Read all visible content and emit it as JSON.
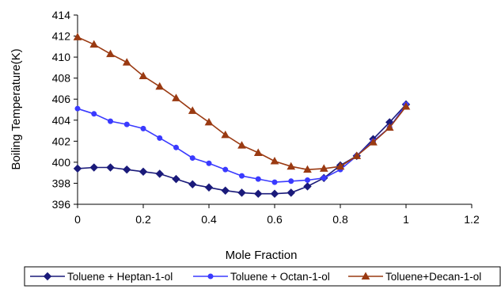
{
  "chart_data": {
    "type": "line",
    "title": "",
    "xlabel": "Mole Fraction",
    "ylabel": "Boiling Temperature(K)",
    "xlim": [
      0,
      1.2
    ],
    "ylim": [
      396,
      414
    ],
    "x_ticks": [
      "0",
      "0.2",
      "0.4",
      "0.6",
      "0.8",
      "1",
      "1.2"
    ],
    "y_ticks": [
      "396",
      "398",
      "400",
      "402",
      "404",
      "406",
      "408",
      "410",
      "412",
      "414"
    ],
    "grid": false,
    "legend_position": "bottom",
    "series": [
      {
        "name": "Toluene + Heptan-1-ol",
        "color": "#1a1a7a",
        "marker": "diamond",
        "x": [
          0,
          0.05,
          0.1,
          0.15,
          0.2,
          0.25,
          0.3,
          0.35,
          0.4,
          0.45,
          0.5,
          0.55,
          0.6,
          0.65,
          0.7,
          0.75,
          0.8,
          0.85,
          0.9,
          0.95,
          1.0
        ],
        "y": [
          399.4,
          399.5,
          399.5,
          399.3,
          399.1,
          398.9,
          398.4,
          397.9,
          397.6,
          397.3,
          397.1,
          397.0,
          397.0,
          397.1,
          397.7,
          398.5,
          399.7,
          400.6,
          402.2,
          403.8,
          405.5
        ]
      },
      {
        "name": "Toluene + Octan-1-ol",
        "color": "#3a3aff",
        "marker": "circle",
        "x": [
          0,
          0.05,
          0.1,
          0.15,
          0.2,
          0.25,
          0.3,
          0.35,
          0.4,
          0.45,
          0.5,
          0.55,
          0.6,
          0.65,
          0.7,
          0.75,
          0.8,
          0.85,
          0.9,
          0.95,
          1.0
        ],
        "y": [
          405.1,
          404.6,
          403.9,
          403.6,
          403.2,
          402.3,
          401.4,
          400.4,
          399.9,
          399.3,
          398.7,
          398.4,
          398.1,
          398.2,
          398.3,
          398.5,
          399.3,
          400.6,
          402.0,
          403.3,
          405.5
        ]
      },
      {
        "name": "Toluene+Decan-1-ol",
        "color": "#9a3a12",
        "marker": "triangle",
        "x": [
          0,
          0.05,
          0.1,
          0.15,
          0.2,
          0.25,
          0.3,
          0.35,
          0.4,
          0.45,
          0.5,
          0.55,
          0.6,
          0.65,
          0.7,
          0.75,
          0.8,
          0.85,
          0.9,
          0.95,
          1.0
        ],
        "y": [
          411.9,
          411.2,
          410.3,
          409.5,
          408.2,
          407.2,
          406.1,
          404.9,
          403.8,
          402.6,
          401.6,
          400.9,
          400.1,
          399.6,
          399.3,
          399.4,
          399.6,
          400.6,
          401.9,
          403.3,
          405.3
        ]
      }
    ]
  }
}
